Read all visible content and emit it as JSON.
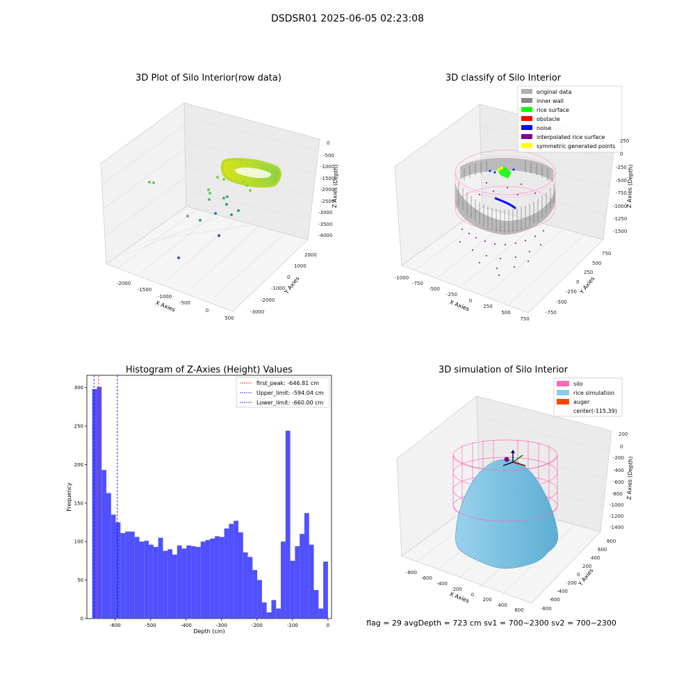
{
  "suptitle": "DSDSR01 2025-06-05 02:23:08",
  "status_text": "flag = 29  avgDepth = 723 cm  sv1 = 700~2300  sv2 = 700~2300",
  "colors": {
    "hist_bar": "#5050ff",
    "first_peak_line": "#ff0000",
    "limit_line": "#0000cc",
    "grid_pane": "#f2f2f2",
    "silo": "#ff69b4",
    "rice": "#87ceeb",
    "auger": "#ff4500",
    "inner_wall": "#888888",
    "rice_surface": "#00ff00",
    "obstacle": "#ff0000",
    "noise": "#0000ff",
    "interpolated": "#800080",
    "symmetric": "#ffff00",
    "original": "#b0b0b0"
  },
  "chart_data": [
    {
      "type": "scatter",
      "projection": "3d",
      "title": "3D Plot of Silo Interior(row data)",
      "xlabel": "X Axies",
      "ylabel": "Y Axies",
      "zlabel": "Z Axies (Depth)",
      "xticks": [
        "-2000",
        "-1500",
        "-1000",
        "-500",
        "0",
        "500"
      ],
      "yticks": [
        "2000",
        "1000",
        "0",
        "-1000",
        "-2000",
        "-3000"
      ],
      "zticks": [
        "0",
        "-500",
        "-1000",
        "-1500",
        "-2000",
        "-2500",
        "-3000",
        "-3500",
        "-4000"
      ],
      "xlim": [
        -2300,
        600
      ],
      "ylim": [
        -3200,
        2400
      ],
      "zlim": [
        -4200,
        200
      ],
      "colormap": "viridis"
    },
    {
      "type": "scatter",
      "projection": "3d",
      "title": "3D classify of Silo Interior",
      "xlabel": "X Axies",
      "ylabel": "Y Axies",
      "zlabel": "Z Axies (Depth)",
      "xticks": [
        "-1000",
        "-750",
        "-500",
        "-250",
        "0",
        "250",
        "500",
        "750"
      ],
      "yticks": [
        "750",
        "500",
        "250",
        "0",
        "-250",
        "-500",
        "-750"
      ],
      "zticks": [
        "250",
        "0",
        "-250",
        "-500",
        "-750",
        "-1000",
        "-1250",
        "-1500"
      ],
      "legend": [
        {
          "label": "original data",
          "color": "#b0b0b0"
        },
        {
          "label": "inner wall",
          "color": "#888888"
        },
        {
          "label": "rice surface",
          "color": "#00ff00"
        },
        {
          "label": "obstacle",
          "color": "#ff0000"
        },
        {
          "label": "noise",
          "color": "#0000ff"
        },
        {
          "label": "interpolated rice surface",
          "color": "#800080"
        },
        {
          "label": "symmetric generated points",
          "color": "#ffff00"
        }
      ],
      "legend_placement": "top-right"
    },
    {
      "type": "bar",
      "title": "Histogram of Z-Axies (Height) Values",
      "xlabel": "Depth (cm)",
      "ylabel": "Frequency",
      "xlim": [
        -680,
        10
      ],
      "ylim": [
        0,
        316
      ],
      "xticks": [
        -600,
        -500,
        -400,
        -300,
        -200,
        -100,
        0
      ],
      "yticks": [
        0,
        50,
        100,
        150,
        200,
        250,
        300
      ],
      "bins": {
        "start": -665,
        "width": 13.3,
        "values": [
          298,
          301,
          193,
          163,
          135,
          125,
          111,
          113,
          113,
          106,
          100,
          101,
          96,
          93,
          105,
          88,
          90,
          83,
          95,
          91,
          95,
          94,
          93,
          100,
          102,
          104,
          107,
          106,
          117,
          123,
          127,
          112,
          86,
          80,
          63,
          50,
          21,
          8,
          24,
          13,
          100,
          244,
          75,
          94,
          110,
          137,
          96,
          37,
          13,
          74
        ]
      },
      "vlines": [
        {
          "label": "first_peak: -646.81 cm",
          "x": -646.81,
          "color": "#ff0000"
        },
        {
          "label": "Upper_limit: -594.04 cm",
          "x": -594.04,
          "color": "#0000cc"
        },
        {
          "label": "Lower_limit: -660.00 cm",
          "x": -660.0,
          "color": "#0000cc"
        }
      ],
      "legend_placement": "top-right"
    },
    {
      "type": "surface",
      "projection": "3d",
      "title": "3D simulation of Silo Interior",
      "xlabel": "X Axies",
      "ylabel": "Y Axies",
      "zlabel": "Z Axies (Depth)",
      "xticks": [
        "-800",
        "-600",
        "-400",
        "-200",
        "0",
        "200",
        "400",
        "600"
      ],
      "yticks": [
        "800",
        "600",
        "400",
        "200",
        "0",
        "-200",
        "-400",
        "-600",
        "-800"
      ],
      "zticks": [
        "200",
        "0",
        "-200",
        "-400",
        "-600",
        "-800",
        "-1000",
        "-1200",
        "-1400"
      ],
      "legend": [
        {
          "label": "silo",
          "color": "#ff69b4"
        },
        {
          "label": "rice simulation",
          "color": "#87ceeb"
        },
        {
          "label": "auger",
          "color": "#ff4500"
        },
        {
          "label": "center(-115,39)",
          "color": ""
        }
      ],
      "legend_placement": "top-right"
    }
  ]
}
